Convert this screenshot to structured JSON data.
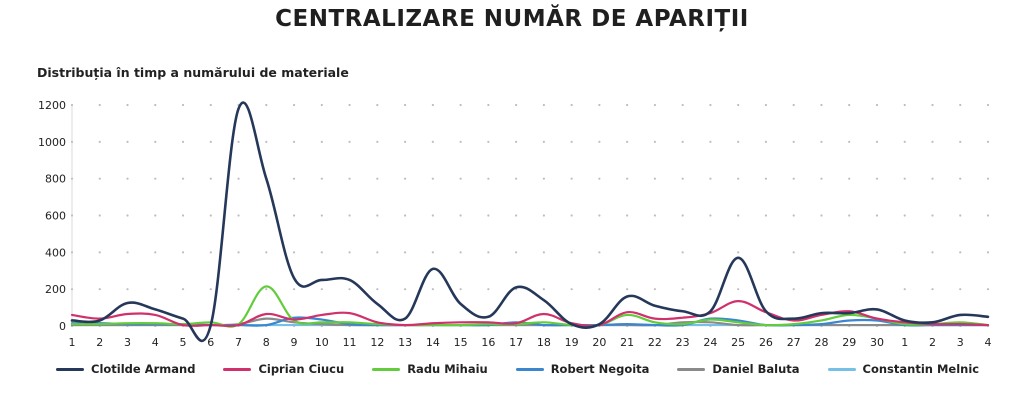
{
  "page": {
    "title": "CENTRALIZARE NUMĂR DE APARIȚII",
    "subtitle": "Distribuția în timp a numărului de materiale"
  },
  "chart_data": {
    "type": "line",
    "title": "",
    "xlabel": "",
    "ylabel": "",
    "ylim": [
      0,
      1200
    ],
    "yticks": [
      0,
      200,
      400,
      600,
      800,
      1000,
      1200
    ],
    "grid": true,
    "legend_position": "bottom",
    "categories": [
      "1",
      "2",
      "3",
      "4",
      "5",
      "6",
      "7",
      "8",
      "9",
      "10",
      "11",
      "12",
      "13",
      "14",
      "15",
      "16",
      "17",
      "18",
      "19",
      "20",
      "21",
      "22",
      "23",
      "24",
      "25",
      "26",
      "27",
      "28",
      "29",
      "30",
      "1",
      "2",
      "3",
      "4"
    ],
    "series": [
      {
        "name": "Clotilde Armand",
        "color": "#26385a",
        "values": [
          30,
          30,
          125,
          90,
          40,
          5,
          1180,
          800,
          260,
          250,
          250,
          120,
          40,
          310,
          120,
          50,
          210,
          140,
          10,
          10,
          160,
          110,
          80,
          80,
          370,
          80,
          40,
          70,
          70,
          90,
          30,
          20,
          60,
          50
        ]
      },
      {
        "name": "Ciprian Ciucu",
        "color": "#d0306b",
        "values": [
          60,
          40,
          65,
          60,
          5,
          5,
          5,
          65,
          35,
          60,
          70,
          20,
          5,
          15,
          20,
          20,
          15,
          65,
          15,
          5,
          75,
          40,
          45,
          70,
          135,
          75,
          30,
          60,
          80,
          40,
          20,
          10,
          10,
          5
        ]
      },
      {
        "name": "Radu Mihaiu",
        "color": "#62cc3c",
        "values": [
          10,
          10,
          15,
          15,
          10,
          20,
          10,
          215,
          30,
          20,
          20,
          10,
          5,
          5,
          5,
          10,
          10,
          20,
          5,
          5,
          60,
          20,
          10,
          35,
          20,
          5,
          10,
          30,
          60,
          40,
          10,
          10,
          20,
          5
        ]
      },
      {
        "name": "Robert Negoita",
        "color": "#3a86d0",
        "values": [
          15,
          15,
          10,
          10,
          10,
          5,
          5,
          5,
          45,
          35,
          10,
          5,
          5,
          5,
          5,
          5,
          20,
          5,
          5,
          5,
          10,
          5,
          5,
          40,
          30,
          5,
          5,
          10,
          30,
          30,
          5,
          5,
          5,
          5
        ]
      },
      {
        "name": "Daniel Baluta",
        "color": "#8a8a8a",
        "values": [
          5,
          5,
          5,
          5,
          5,
          5,
          10,
          40,
          20,
          10,
          5,
          5,
          5,
          5,
          5,
          5,
          5,
          5,
          5,
          5,
          5,
          5,
          20,
          20,
          5,
          5,
          5,
          5,
          5,
          5,
          5,
          5,
          5,
          5
        ]
      },
      {
        "name": "Constantin Melnic",
        "color": "#74c0e6",
        "values": [
          5,
          5,
          5,
          5,
          5,
          5,
          5,
          5,
          5,
          5,
          5,
          5,
          5,
          5,
          5,
          5,
          5,
          5,
          5,
          5,
          5,
          5,
          5,
          5,
          5,
          5,
          5,
          5,
          5,
          5,
          5,
          5,
          5,
          5
        ]
      }
    ]
  }
}
